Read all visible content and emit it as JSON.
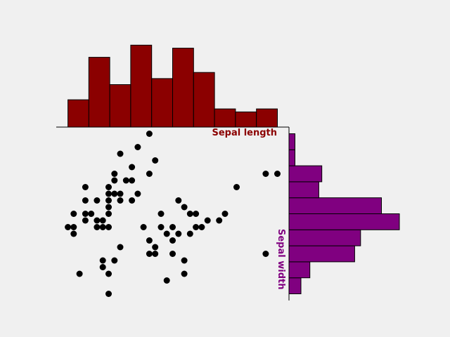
{
  "colors": {
    "background": "#f0f0f0",
    "scatter_points": "#000000",
    "top_histogram": "#8b0000",
    "right_histogram": "#800080",
    "bar_edge": "#000000"
  },
  "chart_data": [
    {
      "type": "scatter",
      "title": "",
      "xlabel": "Sepal length",
      "ylabel": "Sepal width",
      "xlim": [
        4.1,
        8.1
      ],
      "ylim": [
        1.9,
        4.5
      ],
      "grid": false,
      "points": [
        [
          4.3,
          3.0
        ],
        [
          4.4,
          2.9
        ],
        [
          4.4,
          3.0
        ],
        [
          4.4,
          3.2
        ],
        [
          4.5,
          2.3
        ],
        [
          4.6,
          3.1
        ],
        [
          4.6,
          3.2
        ],
        [
          4.6,
          3.4
        ],
        [
          4.6,
          3.6
        ],
        [
          4.7,
          3.2
        ],
        [
          4.8,
          3.0
        ],
        [
          4.8,
          3.1
        ],
        [
          4.8,
          3.4
        ],
        [
          4.9,
          2.4
        ],
        [
          4.9,
          2.5
        ],
        [
          4.9,
          3.0
        ],
        [
          4.9,
          3.1
        ],
        [
          5.0,
          2.0
        ],
        [
          5.0,
          2.3
        ],
        [
          5.0,
          3.0
        ],
        [
          5.0,
          3.2
        ],
        [
          5.0,
          3.3
        ],
        [
          5.0,
          3.4
        ],
        [
          5.0,
          3.5
        ],
        [
          5.0,
          3.6
        ],
        [
          5.1,
          2.5
        ],
        [
          5.1,
          3.5
        ],
        [
          5.1,
          3.7
        ],
        [
          5.1,
          3.8
        ],
        [
          5.2,
          2.7
        ],
        [
          5.2,
          3.4
        ],
        [
          5.2,
          3.5
        ],
        [
          5.2,
          4.1
        ],
        [
          5.3,
          3.7
        ],
        [
          5.4,
          3.4
        ],
        [
          5.4,
          3.7
        ],
        [
          5.4,
          3.9
        ],
        [
          5.5,
          3.5
        ],
        [
          5.5,
          4.2
        ],
        [
          5.6,
          3.0
        ],
        [
          5.7,
          2.6
        ],
        [
          5.7,
          2.8
        ],
        [
          5.7,
          3.8
        ],
        [
          5.7,
          4.4
        ],
        [
          5.8,
          2.6
        ],
        [
          5.8,
          2.7
        ],
        [
          5.8,
          4.0
        ],
        [
          5.9,
          3.0
        ],
        [
          5.9,
          3.2
        ],
        [
          6.0,
          2.2
        ],
        [
          6.0,
          2.9
        ],
        [
          6.1,
          2.6
        ],
        [
          6.1,
          2.8
        ],
        [
          6.1,
          3.0
        ],
        [
          6.2,
          2.9
        ],
        [
          6.2,
          3.4
        ],
        [
          6.3,
          2.3
        ],
        [
          6.3,
          2.5
        ],
        [
          6.3,
          3.3
        ],
        [
          6.4,
          2.9
        ],
        [
          6.4,
          3.2
        ],
        [
          6.5,
          3.0
        ],
        [
          6.5,
          3.2
        ],
        [
          6.6,
          3.0
        ],
        [
          6.7,
          3.1
        ],
        [
          6.9,
          3.1
        ],
        [
          7.0,
          3.2
        ],
        [
          7.2,
          3.6
        ],
        [
          7.7,
          2.6
        ],
        [
          7.7,
          3.8
        ],
        [
          7.9,
          3.8
        ]
      ]
    },
    {
      "type": "bar",
      "orientation": "vertical",
      "title": "",
      "bin_edges": [
        4.3,
        4.66,
        5.02,
        5.38,
        5.74,
        6.1,
        6.46,
        6.82,
        7.18,
        7.54,
        7.9
      ],
      "values": [
        9,
        23,
        14,
        27,
        16,
        26,
        18,
        6,
        5,
        6
      ],
      "ylim": [
        0,
        28
      ]
    },
    {
      "type": "bar",
      "orientation": "horizontal",
      "title": "",
      "bin_edges": [
        2.0,
        2.24,
        2.48,
        2.72,
        2.96,
        3.2,
        3.44,
        3.68,
        3.92,
        4.16,
        4.4
      ],
      "values": [
        4,
        7,
        22,
        24,
        37,
        31,
        10,
        11,
        2,
        2
      ],
      "xlim": [
        0,
        37
      ]
    }
  ]
}
